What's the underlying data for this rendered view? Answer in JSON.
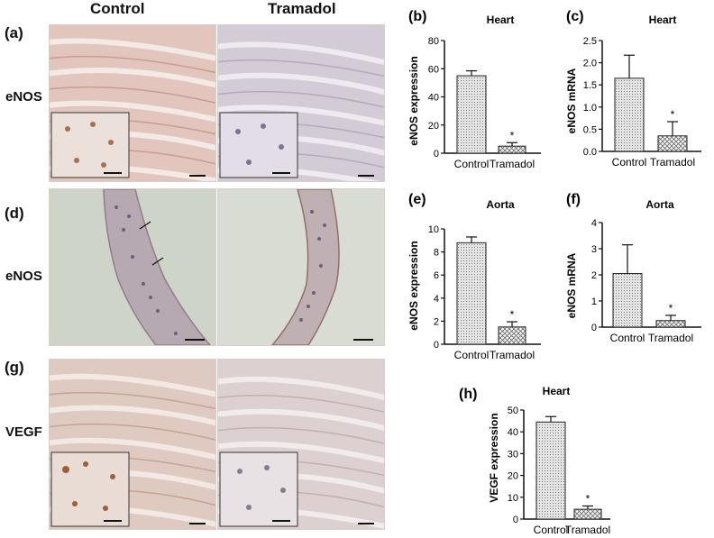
{
  "figure": {
    "column_headers": [
      "Control",
      "Tramadol"
    ],
    "row_labels": [
      "eNOS",
      "eNOS",
      "VEGF"
    ],
    "panel_letters": [
      "(a)",
      "(d)",
      "(g)"
    ]
  },
  "chart_data": [
    {
      "id": "b",
      "type": "bar",
      "panel": "(b)",
      "title": "Heart",
      "ylabel": "eNOS expression",
      "xlabel": "",
      "categories": [
        "Control",
        "Tramadol"
      ],
      "values": [
        55,
        5
      ],
      "errors": [
        3.5,
        2.5
      ],
      "ylim": [
        0,
        80
      ],
      "yticks": [
        0,
        20,
        40,
        60,
        80
      ],
      "tick_labels": [
        "0",
        "20",
        "40",
        "60",
        "80"
      ],
      "significance": [
        "",
        "*"
      ],
      "grid": false
    },
    {
      "id": "c",
      "type": "bar",
      "panel": "(c)",
      "title": "Heart",
      "ylabel": "eNOS mRNA",
      "xlabel": "",
      "categories": [
        "Control",
        "Tramadol"
      ],
      "values": [
        1.65,
        0.35
      ],
      "errors": [
        0.52,
        0.32
      ],
      "ylim": [
        0,
        2.5
      ],
      "yticks": [
        0,
        0.5,
        1,
        1.5,
        2,
        2.5
      ],
      "tick_labels": [
        "0.0",
        "0.5",
        "1.0",
        "1.5",
        "2.0",
        "2.5"
      ],
      "significance": [
        "",
        "*"
      ],
      "grid": false
    },
    {
      "id": "e",
      "type": "bar",
      "panel": "(e)",
      "title": "Aorta",
      "ylabel": "eNOS expression",
      "xlabel": "",
      "categories": [
        "Control",
        "Tramadol"
      ],
      "values": [
        8.8,
        1.5
      ],
      "errors": [
        0.5,
        0.45
      ],
      "ylim": [
        0,
        10
      ],
      "yticks": [
        0,
        2,
        4,
        6,
        8,
        10
      ],
      "tick_labels": [
        "0",
        "2",
        "4",
        "6",
        "8",
        "10"
      ],
      "significance": [
        "",
        "*"
      ],
      "grid": false
    },
    {
      "id": "f",
      "type": "bar",
      "panel": "(f)",
      "title": "Aorta",
      "ylabel": "eNOS mRNA",
      "xlabel": "",
      "categories": [
        "Control",
        "Tramadol"
      ],
      "values": [
        2.05,
        0.25
      ],
      "errors": [
        1.1,
        0.2
      ],
      "ylim": [
        0,
        4
      ],
      "yticks": [
        0,
        1,
        2,
        3,
        4
      ],
      "tick_labels": [
        "0",
        "1",
        "2",
        "3",
        "4"
      ],
      "significance": [
        "",
        "*"
      ],
      "grid": false
    },
    {
      "id": "h",
      "type": "bar",
      "panel": "(h)",
      "title": "Heart",
      "ylabel": "VEGF expression",
      "xlabel": "",
      "categories": [
        "Control",
        "Tramadol"
      ],
      "values": [
        44.5,
        4.5
      ],
      "errors": [
        2.5,
        1.5
      ],
      "ylim": [
        0,
        50
      ],
      "yticks": [
        0,
        10,
        20,
        30,
        40,
        50
      ],
      "tick_labels": [
        "0",
        "10",
        "20",
        "30",
        "40",
        "50"
      ],
      "significance": [
        "",
        "*"
      ],
      "grid": false
    }
  ],
  "colors": {
    "bar_control_fill": "#e4e4e4",
    "bar_tramadol_fill": "#f4f4f4",
    "axis": "#111111",
    "heart_control_tissue": "#e2c6bd",
    "heart_tramadol_tissue": "#d3ccd6",
    "aorta_background": "#cfd4c8",
    "aorta_wall": "#b7a9b2"
  }
}
